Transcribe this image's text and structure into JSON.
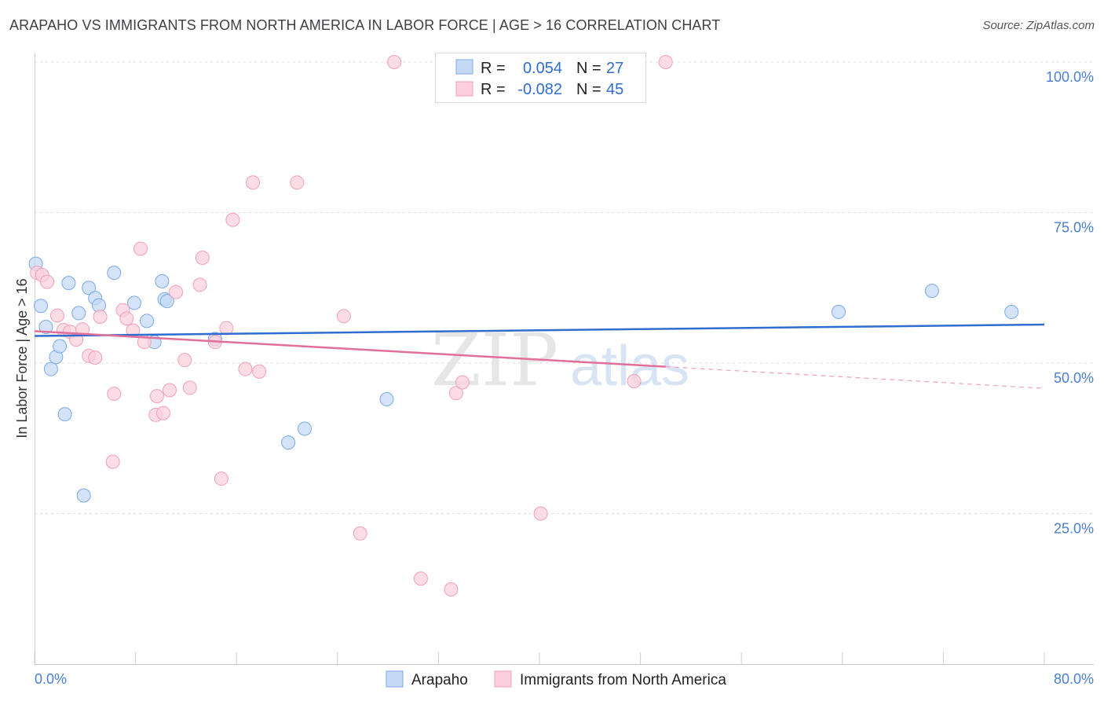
{
  "title": "ARAPAHO VS IMMIGRANTS FROM NORTH AMERICA IN LABOR FORCE | AGE > 16 CORRELATION CHART",
  "source": "Source: ZipAtlas.com",
  "watermark": {
    "zip": "ZIP",
    "atlas": "atlas"
  },
  "chart_data": {
    "type": "scatter",
    "title": "ARAPAHO VS IMMIGRANTS FROM NORTH AMERICA IN LABOR FORCE | AGE > 16 CORRELATION CHART",
    "xlabel": "",
    "ylabel": "In Labor Force | Age > 16",
    "xlim": [
      0,
      80
    ],
    "ylim": [
      0,
      100
    ],
    "x_tick_labels": {
      "min": "0.0%",
      "max": "80.0%"
    },
    "y_ticks": [
      {
        "value": 100,
        "label": "100.0%"
      },
      {
        "value": 75,
        "label": "75.0%"
      },
      {
        "value": 50,
        "label": "50.0%"
      },
      {
        "value": 25,
        "label": "25.0%"
      }
    ],
    "legend": [
      {
        "r_label": "R =",
        "r_value": "0.054",
        "n_label": "N =",
        "n_value": "27"
      },
      {
        "r_label": "R =",
        "r_value": "-0.082",
        "n_label": "N =",
        "n_value": "45"
      }
    ],
    "series": [
      {
        "name": "Arapaho",
        "color": "#7aaae8",
        "fill": "#c5d9f5",
        "trend": {
          "x0": 0,
          "y0": 54.5,
          "x1": 80,
          "y1": 56.4
        },
        "points": [
          [
            0.1,
            66.5
          ],
          [
            0.5,
            59.5
          ],
          [
            0.9,
            56
          ],
          [
            1.3,
            49
          ],
          [
            1.7,
            51
          ],
          [
            2.0,
            52.8
          ],
          [
            2.4,
            41.5
          ],
          [
            2.7,
            63.3
          ],
          [
            3.5,
            58.3
          ],
          [
            3.9,
            28
          ],
          [
            4.3,
            62.5
          ],
          [
            4.8,
            60.8
          ],
          [
            5.1,
            59.6
          ],
          [
            6.3,
            65
          ],
          [
            7.9,
            60
          ],
          [
            8.9,
            57
          ],
          [
            9.5,
            53.5
          ],
          [
            10.1,
            63.6
          ],
          [
            10.3,
            60.6
          ],
          [
            10.5,
            60.3
          ],
          [
            14.3,
            54
          ],
          [
            20.1,
            36.8
          ],
          [
            21.4,
            39.1
          ],
          [
            27.9,
            44
          ],
          [
            63.7,
            58.5
          ],
          [
            71.1,
            62
          ],
          [
            77.4,
            58.5
          ]
        ]
      },
      {
        "name": "Immigrants from North America",
        "color": "#f0a0b8",
        "fill": "#fbd0dc",
        "trend": {
          "x0": 0,
          "y0": 55.3,
          "x1": 50,
          "y1": 49.4
        },
        "trend_extension": {
          "x0": 50,
          "y0": 49.4,
          "x1": 80,
          "y1": 45.8
        },
        "points": [
          [
            0.2,
            65
          ],
          [
            0.6,
            64.6
          ],
          [
            1.0,
            63.5
          ],
          [
            1.8,
            57.9
          ],
          [
            2.3,
            55.5
          ],
          [
            2.8,
            55.2
          ],
          [
            3.3,
            53.9
          ],
          [
            3.8,
            55.6
          ],
          [
            4.3,
            51.2
          ],
          [
            4.8,
            50.9
          ],
          [
            5.2,
            57.7
          ],
          [
            6.2,
            33.6
          ],
          [
            6.3,
            44.9
          ],
          [
            7.0,
            58.8
          ],
          [
            7.3,
            57.4
          ],
          [
            7.8,
            55.4
          ],
          [
            8.4,
            69
          ],
          [
            8.7,
            53.5
          ],
          [
            9.6,
            41.4
          ],
          [
            9.7,
            44.5
          ],
          [
            10.2,
            41.7
          ],
          [
            10.7,
            45.5
          ],
          [
            11.2,
            61.8
          ],
          [
            11.9,
            50.5
          ],
          [
            12.3,
            45.9
          ],
          [
            13.1,
            63
          ],
          [
            13.3,
            67.5
          ],
          [
            14.3,
            53.5
          ],
          [
            14.8,
            30.8
          ],
          [
            15.2,
            55.8
          ],
          [
            15.7,
            73.8
          ],
          [
            16.7,
            49
          ],
          [
            17.3,
            80
          ],
          [
            17.8,
            48.6
          ],
          [
            20.8,
            80
          ],
          [
            24.5,
            57.8
          ],
          [
            25.8,
            21.7
          ],
          [
            28.5,
            100
          ],
          [
            30.6,
            14.2
          ],
          [
            33.0,
            12.4
          ],
          [
            33.4,
            45
          ],
          [
            33.9,
            46.8
          ],
          [
            40.1,
            25
          ],
          [
            47.5,
            47
          ],
          [
            50.0,
            100
          ]
        ]
      }
    ]
  },
  "bottom_legend": [
    "Arapaho",
    "Immigrants from North America"
  ]
}
